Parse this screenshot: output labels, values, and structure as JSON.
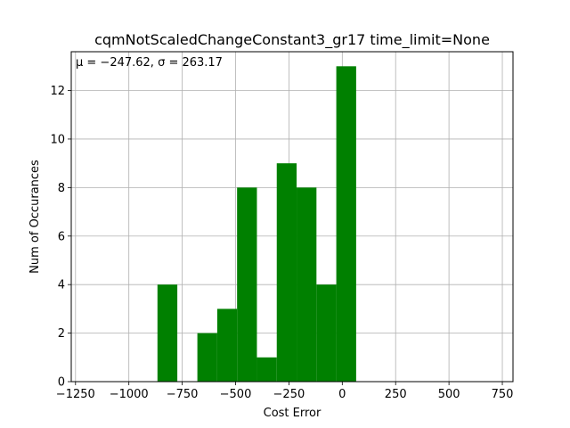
{
  "chart_data": {
    "type": "bar",
    "title": "cqmNotScaledChangeConstant3_gr17 time_limit=None",
    "xlabel": "Cost Error",
    "ylabel": "Num of Occurances",
    "annotation": "μ = −247.62,  σ = 263.17",
    "xlim": [
      -1270,
      800
    ],
    "ylim": [
      0,
      13.6
    ],
    "xticks": [
      -1250,
      -1000,
      -750,
      -500,
      -250,
      0,
      250,
      500,
      750
    ],
    "xtick_labels": [
      "−1250",
      "−1000",
      "−750",
      "−500",
      "−250",
      "0",
      "250",
      "500",
      "750"
    ],
    "yticks": [
      0,
      2,
      4,
      6,
      8,
      10,
      12
    ],
    "ytick_labels": [
      "0",
      "2",
      "4",
      "6",
      "8",
      "10",
      "12"
    ],
    "bin_width": 93,
    "bins": [
      {
        "left": -866,
        "value": 4
      },
      {
        "left": -679,
        "value": 2
      },
      {
        "left": -586,
        "value": 3
      },
      {
        "left": -493,
        "value": 8
      },
      {
        "left": -400,
        "value": 1
      },
      {
        "left": -307,
        "value": 9
      },
      {
        "left": -214,
        "value": 8
      },
      {
        "left": -121,
        "value": 4
      },
      {
        "left": -28,
        "value": 13
      }
    ],
    "bar_color": "#008000",
    "grid": true
  }
}
